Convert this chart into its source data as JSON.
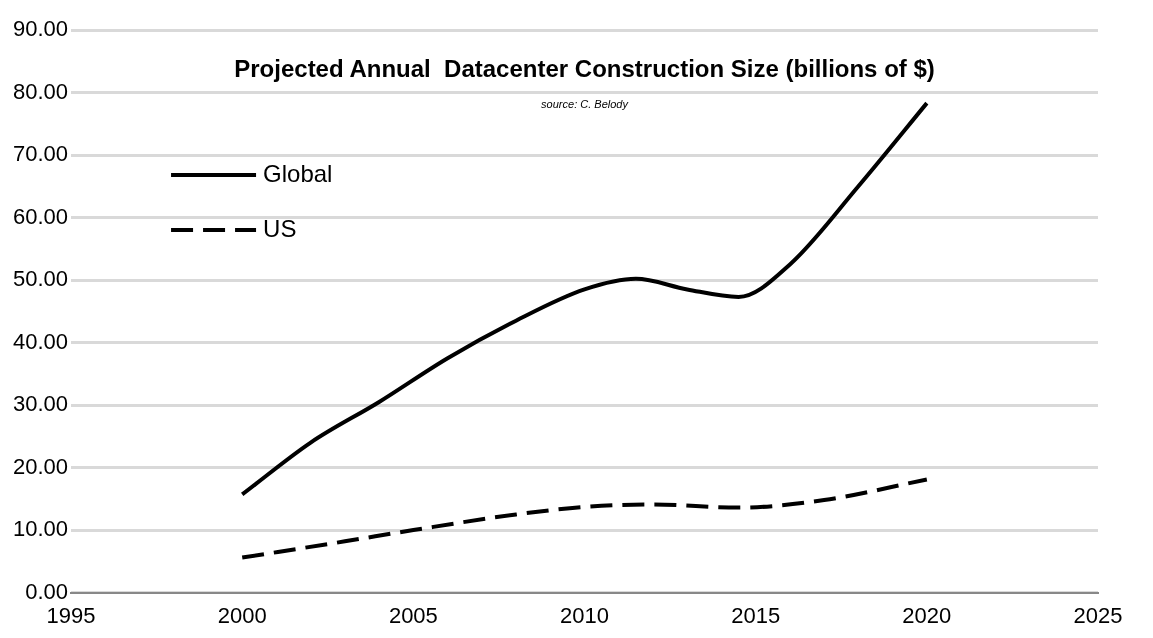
{
  "chart_data": {
    "type": "line",
    "title": "Projected Annual  Datacenter Construction Size (billions of $)",
    "annotations": [
      "source: C. Belody"
    ],
    "series": [
      {
        "name": "Global",
        "color": "#000000",
        "line_style": "solid",
        "x": [
          2000,
          2002,
          2004,
          2006,
          2008,
          2010,
          2011.5,
          2013,
          2014.5,
          2016,
          2018,
          2020
        ],
        "values": [
          15.7,
          24,
          30.5,
          37.5,
          43.5,
          48.5,
          50.2,
          48.5,
          47.3,
          52.5,
          65,
          78.3
        ]
      },
      {
        "name": "US",
        "color": "#000000",
        "line_style": "dashed",
        "x": [
          2000,
          2003,
          2005,
          2008,
          2010,
          2012,
          2014.5,
          2017,
          2020
        ],
        "values": [
          5.6,
          8.2,
          10,
          12.5,
          13.7,
          14.1,
          13.6,
          14.8,
          18.1
        ]
      }
    ],
    "xlim": [
      1995,
      2025
    ],
    "xticks": [
      1995,
      2000,
      2005,
      2010,
      2015,
      2020,
      2025
    ],
    "ylim": [
      0,
      90
    ],
    "yticks": [
      {
        "value": 0,
        "label": "0.00"
      },
      {
        "value": 10,
        "label": "10.00"
      },
      {
        "value": 20,
        "label": "20.00"
      },
      {
        "value": 30,
        "label": "30.00"
      },
      {
        "value": 40,
        "label": "40.00"
      },
      {
        "value": 50,
        "label": "50.00"
      },
      {
        "value": 60,
        "label": "60.00"
      },
      {
        "value": 70,
        "label": "70.00"
      },
      {
        "value": 80,
        "label": "80.00"
      },
      {
        "value": 90,
        "label": "90.00"
      }
    ],
    "grid": "y",
    "legend": "top left",
    "marker": "none"
  }
}
